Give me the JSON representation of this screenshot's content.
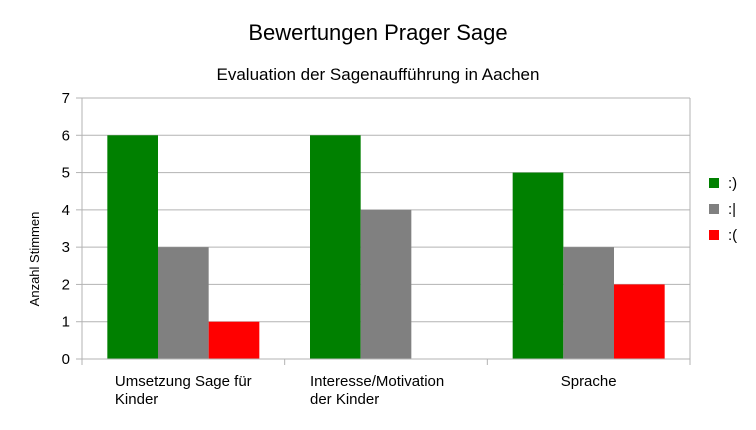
{
  "chart_data": {
    "type": "bar",
    "title": "Bewertungen Prager Sage",
    "subtitle": "Evaluation der Sagenaufführung in Aachen",
    "ylabel": "Anzahl Stimmen",
    "xlabel": "",
    "ylim": [
      0,
      7
    ],
    "yticks": [
      "0",
      "1",
      "2",
      "3",
      "4",
      "5",
      "6",
      "7"
    ],
    "grid": "horizontal",
    "legend_position": "right",
    "categories": [
      [
        "Umsetzung Sage für",
        "Kinder"
      ],
      [
        "Interesse/Motivation",
        "der Kinder"
      ],
      [
        "Sprache"
      ]
    ],
    "series": [
      {
        "name": ":)",
        "color": "#008000",
        "values": [
          6,
          6,
          5
        ]
      },
      {
        "name": ":|",
        "color": "#808080",
        "values": [
          3,
          4,
          3
        ]
      },
      {
        "name": ":(",
        "color": "#ff0000",
        "values": [
          1,
          0,
          2
        ]
      }
    ]
  }
}
